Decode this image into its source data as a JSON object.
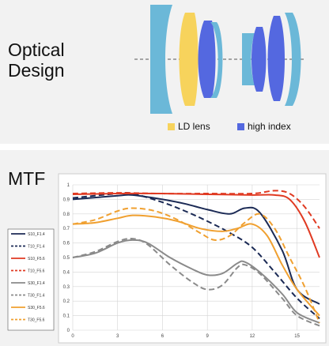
{
  "optical": {
    "title_line1": "Optical",
    "title_line2": "Design",
    "legend": [
      {
        "label": "LD lens",
        "color": "#f7d35c"
      },
      {
        "label": "high index",
        "color": "#5468e0"
      }
    ],
    "lens_colors": {
      "standard": "#6bb8d8",
      "ld": "#f7d35c",
      "high_index": "#5468e0"
    }
  },
  "mtf": {
    "title": "MTF",
    "chart_data": {
      "type": "line",
      "x_ticks": [
        "0",
        "3",
        "6",
        "9",
        "12",
        "15"
      ],
      "y_ticks": [
        "0",
        "0.1",
        "0.2",
        "0.3",
        "0.4",
        "0.5",
        "0.6",
        "0.7",
        "0.8",
        "0.9",
        "1"
      ],
      "xlim": [
        0,
        16.5
      ],
      "ylim": [
        0,
        1
      ],
      "grid": true,
      "legend_position": "left",
      "series": [
        {
          "name": "S10_F1.4",
          "color": "#1b2a55",
          "dash": false,
          "points": [
            [
              0,
              0.9
            ],
            [
              3,
              0.925
            ],
            [
              4,
              0.93
            ],
            [
              6,
              0.9
            ],
            [
              7.5,
              0.87
            ],
            [
              9,
              0.83
            ],
            [
              10.5,
              0.8
            ],
            [
              11.5,
              0.84
            ],
            [
              12.5,
              0.81
            ],
            [
              14,
              0.55
            ],
            [
              15,
              0.28
            ],
            [
              16.5,
              0.18
            ]
          ]
        },
        {
          "name": "T10_F1.4",
          "color": "#1b2a55",
          "dash": true,
          "points": [
            [
              0,
              0.91
            ],
            [
              3,
              0.94
            ],
            [
              4,
              0.94
            ],
            [
              6,
              0.88
            ],
            [
              7.5,
              0.82
            ],
            [
              9,
              0.75
            ],
            [
              10.5,
              0.67
            ],
            [
              12,
              0.57
            ],
            [
              13.5,
              0.4
            ],
            [
              15,
              0.22
            ],
            [
              16.5,
              0.08
            ]
          ]
        },
        {
          "name": "S10_F5.6",
          "color": "#e03a22",
          "dash": false,
          "points": [
            [
              0,
              0.935
            ],
            [
              3,
              0.94
            ],
            [
              6,
              0.94
            ],
            [
              9,
              0.935
            ],
            [
              12,
              0.93
            ],
            [
              13.5,
              0.93
            ],
            [
              14.5,
              0.9
            ],
            [
              15.5,
              0.75
            ],
            [
              16.5,
              0.5
            ]
          ]
        },
        {
          "name": "T10_F5.6",
          "color": "#e03a22",
          "dash": true,
          "points": [
            [
              0,
              0.94
            ],
            [
              3,
              0.945
            ],
            [
              6,
              0.94
            ],
            [
              9,
              0.94
            ],
            [
              12,
              0.94
            ],
            [
              13.5,
              0.96
            ],
            [
              14.5,
              0.94
            ],
            [
              15.5,
              0.85
            ],
            [
              16.5,
              0.7
            ]
          ]
        },
        {
          "name": "S30_F1.4",
          "color": "#8a8a8a",
          "dash": false,
          "points": [
            [
              0,
              0.5
            ],
            [
              1.5,
              0.53
            ],
            [
              3,
              0.6
            ],
            [
              4,
              0.62
            ],
            [
              5,
              0.6
            ],
            [
              6.5,
              0.5
            ],
            [
              8,
              0.42
            ],
            [
              9,
              0.38
            ],
            [
              10,
              0.39
            ],
            [
              11,
              0.46
            ],
            [
              11.5,
              0.47
            ],
            [
              12.5,
              0.4
            ],
            [
              14,
              0.25
            ],
            [
              15,
              0.12
            ],
            [
              16.5,
              0.05
            ]
          ]
        },
        {
          "name": "T30_F1.4",
          "color": "#8a8a8a",
          "dash": true,
          "points": [
            [
              0,
              0.5
            ],
            [
              1.5,
              0.54
            ],
            [
              3,
              0.61
            ],
            [
              4,
              0.63
            ],
            [
              5,
              0.59
            ],
            [
              6.5,
              0.45
            ],
            [
              8,
              0.33
            ],
            [
              9,
              0.28
            ],
            [
              10,
              0.31
            ],
            [
              11,
              0.43
            ],
            [
              11.5,
              0.45
            ],
            [
              12.5,
              0.39
            ],
            [
              14,
              0.22
            ],
            [
              15,
              0.1
            ],
            [
              16.5,
              0.03
            ]
          ]
        },
        {
          "name": "S30_F5.6",
          "color": "#f0a030",
          "dash": false,
          "points": [
            [
              0,
              0.73
            ],
            [
              1.5,
              0.74
            ],
            [
              3,
              0.77
            ],
            [
              4,
              0.79
            ],
            [
              5.5,
              0.78
            ],
            [
              7,
              0.75
            ],
            [
              8.5,
              0.7
            ],
            [
              10,
              0.68
            ],
            [
              11,
              0.7
            ],
            [
              12,
              0.73
            ],
            [
              13,
              0.65
            ],
            [
              14,
              0.45
            ],
            [
              15,
              0.28
            ],
            [
              16.5,
              0.1
            ]
          ]
        },
        {
          "name": "T30_F5.6",
          "color": "#f0a030",
          "dash": true,
          "points": [
            [
              0,
              0.73
            ],
            [
              1.5,
              0.76
            ],
            [
              3,
              0.82
            ],
            [
              4,
              0.84
            ],
            [
              5.5,
              0.82
            ],
            [
              7,
              0.76
            ],
            [
              8.5,
              0.67
            ],
            [
              9.5,
              0.62
            ],
            [
              10.5,
              0.65
            ],
            [
              11.5,
              0.74
            ],
            [
              12.5,
              0.8
            ],
            [
              13.5,
              0.7
            ],
            [
              14.5,
              0.5
            ],
            [
              15.5,
              0.3
            ],
            [
              16.5,
              0.05
            ]
          ]
        }
      ]
    }
  }
}
